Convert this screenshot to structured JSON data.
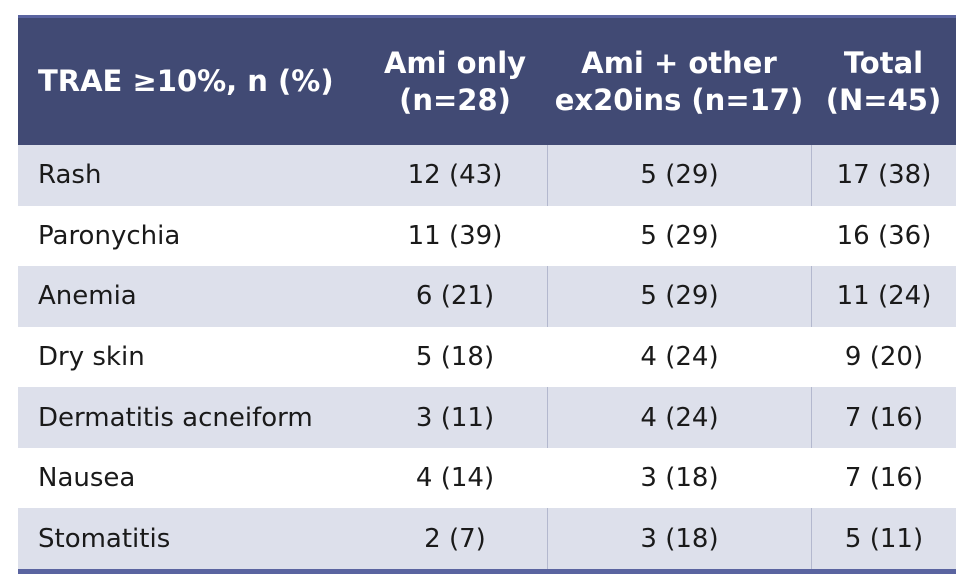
{
  "colors": {
    "page_bg": "#FFFFFF",
    "header_bg": "#414A74",
    "header_text": "#FFFFFF",
    "accent_line": "#5A64A0",
    "shaded_row_bg": "#DDE0EB",
    "column_divider": "#B3B8CE",
    "body_text": "#1A1A1A"
  },
  "table": {
    "columns": [
      {
        "id": "trae",
        "label": "TRAE ≥10%, n (%)",
        "lines": [
          "TRAE ≥10%, n (%)"
        ]
      },
      {
        "id": "ami_only",
        "label": "Ami only (n=28)",
        "lines": [
          "Ami only",
          "(n=28)"
        ]
      },
      {
        "id": "ami_other",
        "label": "Ami + other ex20ins (n=17)",
        "lines": [
          "Ami + other",
          "ex20ins (n=17)"
        ]
      },
      {
        "id": "total",
        "label": "Total (N=45)",
        "lines": [
          "Total",
          "(N=45)"
        ]
      }
    ],
    "rows": [
      {
        "label": "Rash",
        "ami_only": "12 (43)",
        "ami_other": "5 (29)",
        "total": "17 (38)"
      },
      {
        "label": "Paronychia",
        "ami_only": "11 (39)",
        "ami_other": "5 (29)",
        "total": "16 (36)"
      },
      {
        "label": "Anemia",
        "ami_only": "6 (21)",
        "ami_other": "5 (29)",
        "total": "11 (24)"
      },
      {
        "label": "Dry skin",
        "ami_only": "5 (18)",
        "ami_other": "4 (24)",
        "total": "9 (20)"
      },
      {
        "label": "Dermatitis acneiform",
        "ami_only": "3 (11)",
        "ami_other": "4 (24)",
        "total": "7 (16)"
      },
      {
        "label": "Nausea",
        "ami_only": "4 (14)",
        "ami_other": "3 (18)",
        "total": "7 (16)"
      },
      {
        "label": "Stomatitis",
        "ami_only": "2 (7)",
        "ami_other": "3 (18)",
        "total": "5 (11)"
      }
    ]
  },
  "chart_data": {
    "type": "table",
    "title": "TRAE ≥10%, n (%)",
    "columns": [
      "TRAE ≥10%, n (%)",
      "Ami only (n=28)",
      "Ami + other ex20ins (n=17)",
      "Total (N=45)"
    ],
    "rows": [
      [
        "Rash",
        "12 (43)",
        "5 (29)",
        "17 (38)"
      ],
      [
        "Paronychia",
        "11 (39)",
        "5 (29)",
        "16 (36)"
      ],
      [
        "Anemia",
        "6 (21)",
        "5 (29)",
        "11 (24)"
      ],
      [
        "Dry skin",
        "5 (18)",
        "4 (24)",
        "9 (20)"
      ],
      [
        "Dermatitis acneiform",
        "3 (11)",
        "4 (24)",
        "7 (16)"
      ],
      [
        "Nausea",
        "4 (14)",
        "3 (18)",
        "7 (16)"
      ],
      [
        "Stomatitis",
        "2 (7)",
        "3 (18)",
        "5 (11)"
      ]
    ]
  }
}
